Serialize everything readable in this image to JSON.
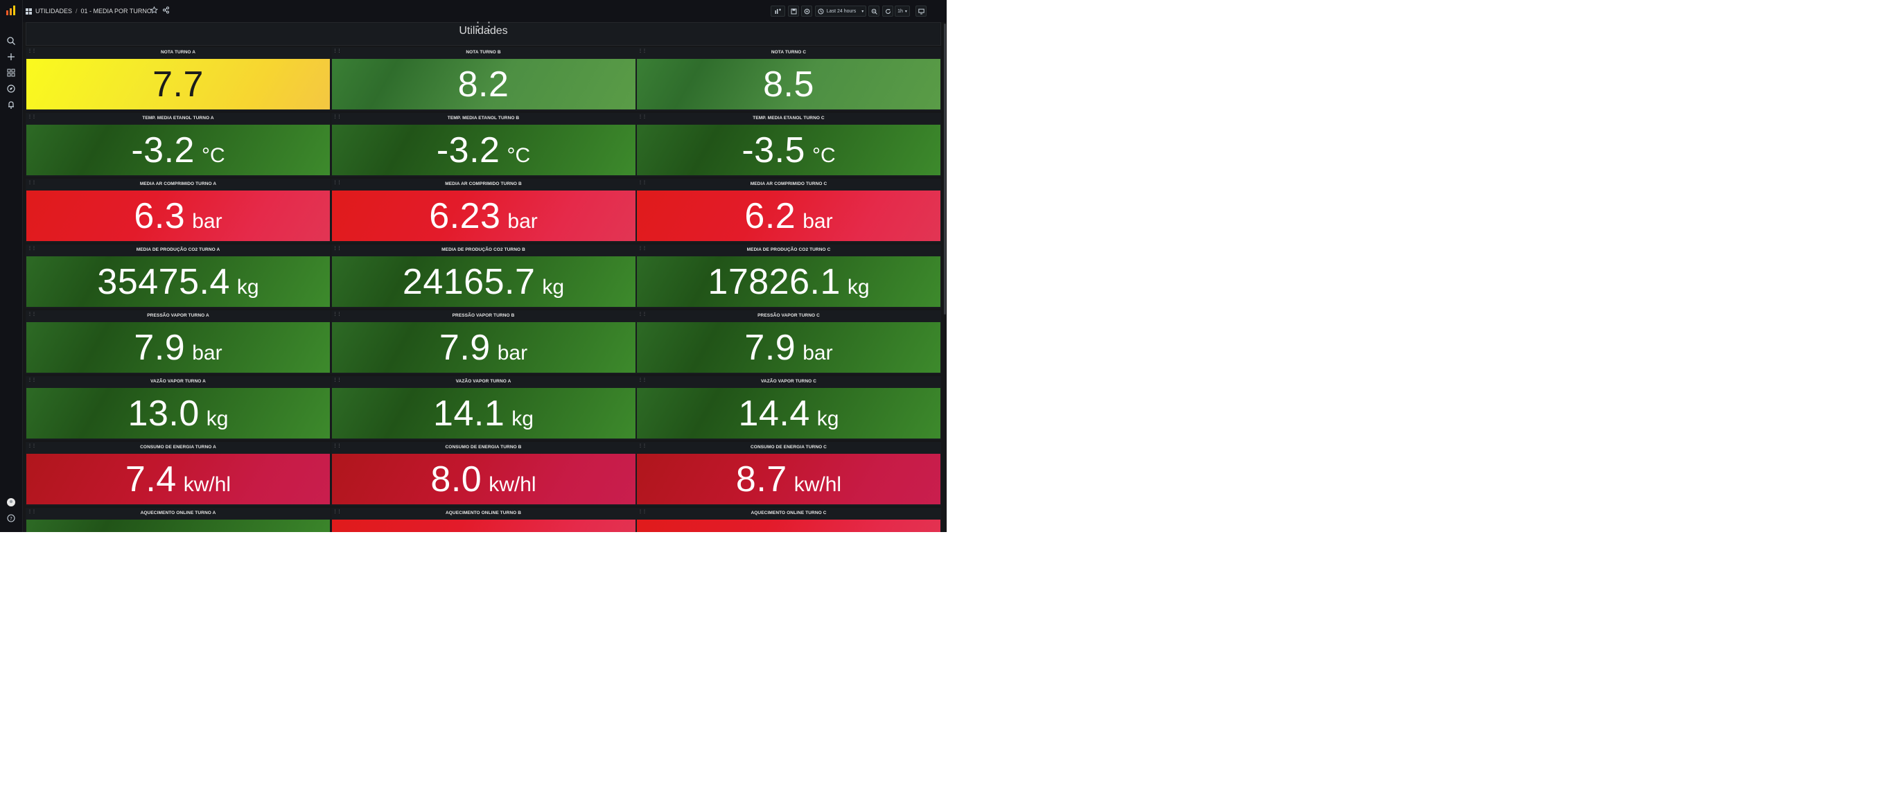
{
  "nav": {
    "items": [
      "search-icon",
      "plus-icon",
      "dashboards-icon",
      "explore-icon",
      "alerting-icon"
    ],
    "bottom": [
      "user-avatar",
      "help-icon"
    ]
  },
  "breadcrumb": {
    "folder": "UTILIDADES",
    "separator": "/",
    "dashboard": "01 - MEDIA POR TURNO"
  },
  "toolbar": {
    "time_range": "Last 24 hours",
    "refresh": "1h"
  },
  "row": {
    "title": "Utilidades"
  },
  "panels": [
    [
      {
        "title": "NOTA TURNO A",
        "value": "7.7",
        "unit": "",
        "color": "yellow"
      },
      {
        "title": "NOTA TURNO B",
        "value": "8.2",
        "unit": "",
        "color": "green-light"
      },
      {
        "title": "NOTA TURNO C",
        "value": "8.5",
        "unit": "",
        "color": "green-light"
      }
    ],
    [
      {
        "title": "TEMP. MEDIA ETANOL TURNO A",
        "value": "-3.2",
        "unit": "°C",
        "color": "green"
      },
      {
        "title": "TEMP. MEDIA ETANOL TURNO B",
        "value": "-3.2",
        "unit": "°C",
        "color": "green"
      },
      {
        "title": "TEMP. MEDIA ETANOL TURNO C",
        "value": "-3.5",
        "unit": "°C",
        "color": "green"
      }
    ],
    [
      {
        "title": "MEDIA AR COMPRIMIDO TURNO A",
        "value": "6.3",
        "unit": "bar",
        "color": "red"
      },
      {
        "title": "MEDIA AR COMPRIMIDO TURNO B",
        "value": "6.23",
        "unit": "bar",
        "color": "red"
      },
      {
        "title": "MEDIA AR COMPRIMIDO TURNO C",
        "value": "6.2",
        "unit": "bar",
        "color": "red"
      }
    ],
    [
      {
        "title": "MEDIA DE PRODUÇÃO CO2 TURNO A",
        "value": "35475.4",
        "unit": "kg",
        "color": "green"
      },
      {
        "title": "MEDIA DE PRODUÇÃO CO2 TURNO B",
        "value": "24165.7",
        "unit": "kg",
        "color": "green"
      },
      {
        "title": "MEDIA DE PRODUÇÃO CO2 TURNO C",
        "value": "17826.1",
        "unit": "kg",
        "color": "green"
      }
    ],
    [
      {
        "title": "PRESSÃO VAPOR TURNO A",
        "value": "7.9",
        "unit": "bar",
        "color": "green"
      },
      {
        "title": "PRESSÃO VAPOR TURNO B",
        "value": "7.9",
        "unit": "bar",
        "color": "green"
      },
      {
        "title": "PRESSÃO VAPOR TURNO C",
        "value": "7.9",
        "unit": "bar",
        "color": "green"
      }
    ],
    [
      {
        "title": "VAZÃO VAPOR TURNO A",
        "value": "13.0",
        "unit": "kg",
        "color": "green"
      },
      {
        "title": "VAZÃO VAPOR TURNO A",
        "value": "14.1",
        "unit": "kg",
        "color": "green"
      },
      {
        "title": "VAZÃO VAPOR TURNO C",
        "value": "14.4",
        "unit": "kg",
        "color": "green"
      }
    ],
    [
      {
        "title": "CONSUMO DE ENERGIA TURNO A",
        "value": "7.4",
        "unit": "kw/hl",
        "color": "red-dark"
      },
      {
        "title": "CONSUMO DE ENERGIA TURNO B",
        "value": "8.0",
        "unit": "kw/hl",
        "color": "red-dark"
      },
      {
        "title": "CONSUMO DE ENERGIA TURNO C",
        "value": "8.7",
        "unit": "kw/hl",
        "color": "red-dark"
      }
    ],
    [
      {
        "title": "AQUECIMENTO ONLINE TURNO A",
        "value": "",
        "unit": "",
        "color": "green"
      },
      {
        "title": "AQUECIMENTO ONLINE TURNO B",
        "value": "",
        "unit": "",
        "color": "red"
      },
      {
        "title": "AQUECIMENTO ONLINE TURNO C",
        "value": "",
        "unit": "",
        "color": "red"
      }
    ]
  ]
}
